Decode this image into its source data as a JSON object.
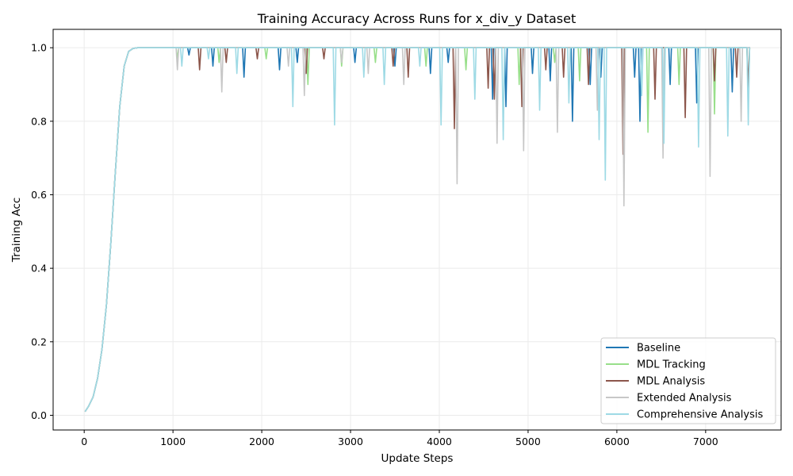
{
  "chart_data": {
    "type": "line",
    "title": "Training Accuracy Across Runs for x_div_y Dataset",
    "xlabel": "Update Steps",
    "ylabel": "Training Acc",
    "xlim": [
      -350,
      7850
    ],
    "ylim": [
      -0.04,
      1.05
    ],
    "xticks": [
      0,
      1000,
      2000,
      3000,
      4000,
      5000,
      6000,
      7000
    ],
    "yticks": [
      0.0,
      0.2,
      0.4,
      0.6,
      0.8,
      1.0
    ],
    "xtick_labels": [
      "0",
      "1000",
      "2000",
      "3000",
      "4000",
      "5000",
      "6000",
      "7000"
    ],
    "ytick_labels": [
      "0.0",
      "0.2",
      "0.4",
      "0.6",
      "0.8",
      "1.0"
    ],
    "grid": true,
    "legend_position": "bottom-right",
    "rise": {
      "x": [
        10,
        50,
        100,
        150,
        200,
        250,
        300,
        350,
        400,
        450,
        500,
        550,
        600,
        700,
        800
      ],
      "y": [
        0.01,
        0.025,
        0.05,
        0.1,
        0.18,
        0.3,
        0.47,
        0.66,
        0.84,
        0.95,
        0.99,
        0.998,
        1.0,
        1.0,
        1.0
      ]
    },
    "series": [
      {
        "name": "Baseline",
        "color": "#1f77b4",
        "dips": [
          [
            1180,
            0.98
          ],
          [
            1450,
            0.95
          ],
          [
            1800,
            0.92
          ],
          [
            2200,
            0.94
          ],
          [
            2400,
            0.96
          ],
          [
            3050,
            0.96
          ],
          [
            3500,
            0.95
          ],
          [
            3900,
            0.93
          ],
          [
            4100,
            0.96
          ],
          [
            4600,
            0.86
          ],
          [
            4750,
            0.84
          ],
          [
            5050,
            0.93
          ],
          [
            5250,
            0.91
          ],
          [
            5500,
            0.8
          ],
          [
            5700,
            0.9
          ],
          [
            5820,
            0.92
          ],
          [
            6200,
            0.92
          ],
          [
            6260,
            0.8
          ],
          [
            6600,
            0.9
          ],
          [
            6900,
            0.85
          ],
          [
            7300,
            0.88
          ]
        ]
      },
      {
        "name": "MDL Tracking",
        "color": "#98df8a",
        "dips": [
          [
            1050,
            0.97
          ],
          [
            1520,
            0.96
          ],
          [
            2050,
            0.97
          ],
          [
            2520,
            0.9
          ],
          [
            2900,
            0.95
          ],
          [
            3280,
            0.96
          ],
          [
            3850,
            0.95
          ],
          [
            4300,
            0.94
          ],
          [
            4900,
            0.9
          ],
          [
            5300,
            0.96
          ],
          [
            5580,
            0.91
          ],
          [
            6350,
            0.77
          ],
          [
            6700,
            0.9
          ],
          [
            7100,
            0.82
          ],
          [
            7480,
            0.85
          ]
        ]
      },
      {
        "name": "MDL Analysis",
        "color": "#8c564b",
        "dips": [
          [
            1300,
            0.94
          ],
          [
            1600,
            0.96
          ],
          [
            1950,
            0.97
          ],
          [
            2500,
            0.93
          ],
          [
            2700,
            0.97
          ],
          [
            3480,
            0.95
          ],
          [
            3650,
            0.92
          ],
          [
            4170,
            0.78
          ],
          [
            4550,
            0.89
          ],
          [
            4620,
            0.86
          ],
          [
            4930,
            0.84
          ],
          [
            5200,
            0.94
          ],
          [
            5400,
            0.92
          ],
          [
            5680,
            0.9
          ],
          [
            6070,
            0.71
          ],
          [
            6430,
            0.86
          ],
          [
            6770,
            0.81
          ],
          [
            7100,
            0.91
          ],
          [
            7350,
            0.92
          ],
          [
            7480,
            0.89
          ]
        ]
      },
      {
        "name": "Extended Analysis",
        "color": "#c7c7c7",
        "dips": [
          [
            1050,
            0.94
          ],
          [
            1550,
            0.88
          ],
          [
            2300,
            0.95
          ],
          [
            2480,
            0.87
          ],
          [
            2900,
            0.96
          ],
          [
            3200,
            0.93
          ],
          [
            3600,
            0.9
          ],
          [
            4200,
            0.63
          ],
          [
            4650,
            0.74
          ],
          [
            4950,
            0.72
          ],
          [
            5330,
            0.77
          ],
          [
            5780,
            0.83
          ],
          [
            6080,
            0.57
          ],
          [
            6520,
            0.7
          ],
          [
            7050,
            0.65
          ],
          [
            7400,
            0.8
          ]
        ]
      },
      {
        "name": "Comprehensive Analysis",
        "color": "#9edae5",
        "dips": [
          [
            1100,
            0.95
          ],
          [
            1400,
            0.97
          ],
          [
            1720,
            0.93
          ],
          [
            2350,
            0.84
          ],
          [
            2820,
            0.79
          ],
          [
            3150,
            0.92
          ],
          [
            3380,
            0.9
          ],
          [
            3780,
            0.95
          ],
          [
            4020,
            0.79
          ],
          [
            4400,
            0.86
          ],
          [
            4720,
            0.75
          ],
          [
            5130,
            0.83
          ],
          [
            5460,
            0.85
          ],
          [
            5800,
            0.75
          ],
          [
            5870,
            0.64
          ],
          [
            6280,
            0.87
          ],
          [
            6530,
            0.74
          ],
          [
            6920,
            0.73
          ],
          [
            7250,
            0.76
          ],
          [
            7480,
            0.79
          ]
        ]
      }
    ]
  }
}
